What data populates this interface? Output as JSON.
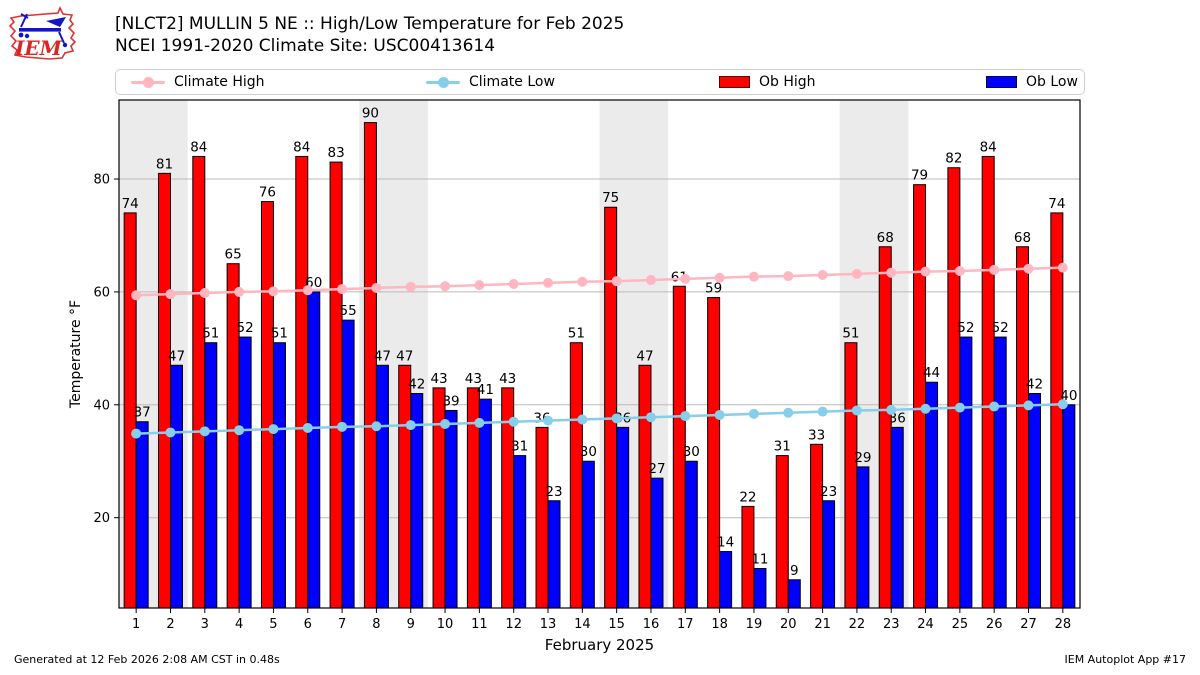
{
  "header": {
    "title_line1": "[NLCT2] MULLIN 5 NE :: High/Low Temperature for Feb 2025",
    "title_line2": "NCEI 1991-2020 Climate Site: USC00413614",
    "logo_text": "IEM"
  },
  "legend": {
    "items": [
      {
        "label": "Climate High",
        "type": "line",
        "color": "#ffb6c1"
      },
      {
        "label": "Climate Low",
        "type": "line",
        "color": "#87ceeb"
      },
      {
        "label": "Ob High",
        "type": "patch",
        "color": "#ff0000"
      },
      {
        "label": "Ob Low",
        "type": "patch",
        "color": "#0000ff"
      }
    ]
  },
  "chart_data": {
    "type": "combo-bar-line",
    "x": [
      1,
      2,
      3,
      4,
      5,
      6,
      7,
      8,
      9,
      10,
      11,
      12,
      13,
      14,
      15,
      16,
      17,
      18,
      19,
      20,
      21,
      22,
      23,
      24,
      25,
      26,
      27,
      28
    ],
    "xlabel": "February 2025",
    "ylabel": "Temperature °F",
    "ylim": [
      4,
      94
    ],
    "yticks": [
      20,
      40,
      60,
      80
    ],
    "grid": "horizontal",
    "weekend_bands": [
      [
        1,
        2
      ],
      [
        8,
        9
      ],
      [
        15,
        16
      ],
      [
        22,
        23
      ]
    ],
    "band_color": "#ebebeb",
    "grid_color": "#bbbbbb",
    "series": [
      {
        "name": "Climate High",
        "type": "line",
        "color": "#ffb6c1",
        "values": [
          59.4,
          59.6,
          59.8,
          60.0,
          60.1,
          60.3,
          60.5,
          60.7,
          60.9,
          61.0,
          61.2,
          61.4,
          61.6,
          61.8,
          61.9,
          62.1,
          62.3,
          62.5,
          62.7,
          62.8,
          63.0,
          63.2,
          63.4,
          63.6,
          63.7,
          63.9,
          64.1,
          64.3
        ]
      },
      {
        "name": "Climate Low",
        "type": "line",
        "color": "#87ceeb",
        "values": [
          34.9,
          35.1,
          35.3,
          35.5,
          35.7,
          35.9,
          36.1,
          36.2,
          36.4,
          36.6,
          36.8,
          37.0,
          37.2,
          37.4,
          37.6,
          37.8,
          38.0,
          38.2,
          38.4,
          38.6,
          38.8,
          39.0,
          39.1,
          39.3,
          39.5,
          39.7,
          39.9,
          40.1
        ]
      },
      {
        "name": "Ob High",
        "type": "bar",
        "color": "#ff0000",
        "labels": true,
        "values": [
          74,
          81,
          84,
          65,
          76,
          84,
          83,
          90,
          47,
          43,
          43,
          43,
          36,
          51,
          75,
          47,
          61,
          59,
          22,
          31,
          33,
          51,
          68,
          79,
          82,
          84,
          68,
          74
        ]
      },
      {
        "name": "Ob Low",
        "type": "bar",
        "color": "#0000ff",
        "labels": true,
        "values": [
          37,
          47,
          51,
          52,
          51,
          60,
          55,
          47,
          42,
          39,
          41,
          31,
          23,
          30,
          36,
          27,
          30,
          14,
          11,
          9,
          23,
          29,
          36,
          44,
          52,
          52,
          42,
          40
        ]
      }
    ]
  },
  "footer": {
    "left": "Generated at 12 Feb 2026 2:08 AM CST in 0.48s",
    "right": "IEM Autoplot App #17"
  }
}
